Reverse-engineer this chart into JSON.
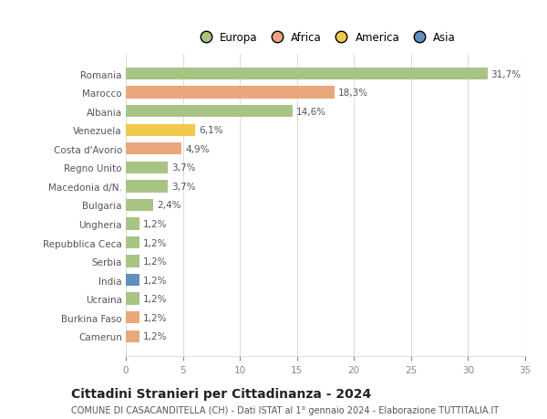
{
  "countries": [
    "Romania",
    "Marocco",
    "Albania",
    "Venezuela",
    "Costa d'Avorio",
    "Regno Unito",
    "Macedonia d/N.",
    "Bulgaria",
    "Ungheria",
    "Repubblica Ceca",
    "Serbia",
    "India",
    "Ucraina",
    "Burkina Faso",
    "Camerun"
  ],
  "values": [
    31.7,
    18.3,
    14.6,
    6.1,
    4.9,
    3.7,
    3.7,
    2.4,
    1.2,
    1.2,
    1.2,
    1.2,
    1.2,
    1.2,
    1.2
  ],
  "labels": [
    "31,7%",
    "18,3%",
    "14,6%",
    "6,1%",
    "4,9%",
    "3,7%",
    "3,7%",
    "2,4%",
    "1,2%",
    "1,2%",
    "1,2%",
    "1,2%",
    "1,2%",
    "1,2%",
    "1,2%"
  ],
  "continents": [
    "Europa",
    "Africa",
    "Europa",
    "America",
    "Africa",
    "Europa",
    "Europa",
    "Europa",
    "Europa",
    "Europa",
    "Europa",
    "Asia",
    "Europa",
    "Africa",
    "Africa"
  ],
  "continent_colors": {
    "Europa": "#a8c484",
    "Africa": "#e8a87c",
    "America": "#f0c84a",
    "Asia": "#6090c0"
  },
  "legend_order": [
    "Europa",
    "Africa",
    "America",
    "Asia"
  ],
  "title": "Cittadini Stranieri per Cittadinanza - 2024",
  "subtitle": "COMUNE DI CASACANDITELLA (CH) - Dati ISTAT al 1° gennaio 2024 - Elaborazione TUTTITALIA.IT",
  "xlim": [
    0,
    35
  ],
  "xticks": [
    0,
    5,
    10,
    15,
    20,
    25,
    30,
    35
  ],
  "background_color": "#ffffff",
  "grid_color": "#dddddd",
  "bar_height": 0.65,
  "label_fontsize": 7.5,
  "tick_fontsize": 7.5,
  "title_fontsize": 10,
  "subtitle_fontsize": 7
}
